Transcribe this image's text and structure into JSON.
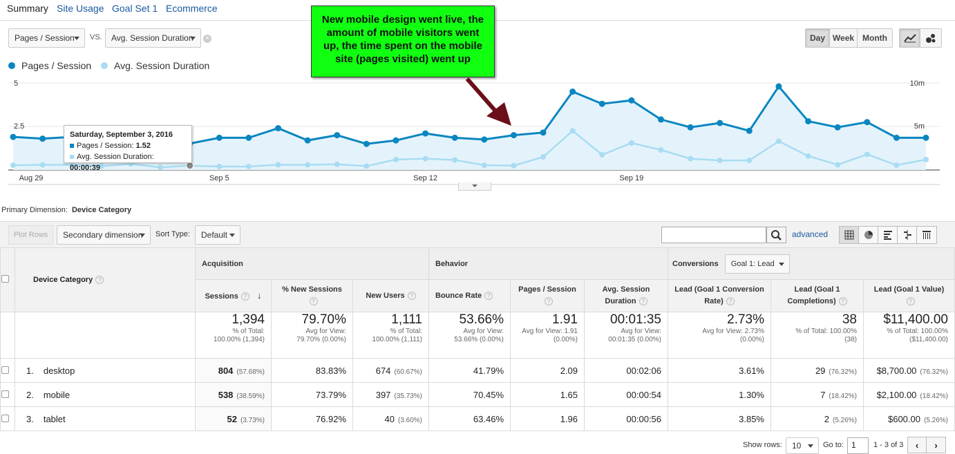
{
  "tabs": [
    "Summary",
    "Site Usage",
    "Goal Set 1",
    "Ecommerce"
  ],
  "controls": {
    "metric1": "Pages / Session",
    "vs_label": "VS.",
    "metric2": "Avg. Session Duration",
    "granularity": [
      "Day",
      "Week",
      "Month"
    ],
    "granularity_selected": "Day"
  },
  "colors": {
    "series1": "#0a86c0",
    "series2": "#a9dcf2",
    "annotation_bg": "#11ff11",
    "arrow": "#6b0f1a"
  },
  "annotation": {
    "line1": "New mobile design went live, the",
    "line2": "amount of mobile visitors went",
    "line3": "up, the time spent on the mobile",
    "line4": "site (pages visited) went up"
  },
  "chart_data": {
    "type": "line",
    "series": [
      {
        "name": "Pages / Session",
        "axis": "left",
        "values": [
          1.9,
          1.8,
          1.9,
          1.8,
          1.75,
          1.9,
          1.52,
          1.85,
          1.85,
          2.4,
          1.7,
          2.0,
          1.5,
          1.7,
          2.1,
          1.85,
          1.75,
          2.0,
          2.15,
          4.5,
          3.8,
          4.0,
          2.9,
          2.45,
          2.7,
          2.25,
          4.8,
          2.8,
          2.45,
          2.75,
          1.85,
          1.85
        ]
      },
      {
        "name": "Avg. Session Duration",
        "axis": "right",
        "values": [
          0.55,
          0.6,
          0.6,
          0.45,
          0.7,
          0.3,
          0.5,
          0.4,
          0.4,
          0.6,
          0.6,
          0.65,
          0.45,
          1.2,
          1.3,
          1.15,
          0.55,
          0.5,
          1.5,
          4.5,
          1.75,
          3.1,
          2.3,
          1.3,
          1.1,
          1.1,
          3.3,
          1.6,
          0.6,
          1.8,
          0.55,
          1.2
        ]
      }
    ],
    "y_left_ticks": [
      "5",
      "2.5"
    ],
    "y_right_ticks": [
      "10m",
      "5m"
    ],
    "ylim_left": [
      0,
      5
    ],
    "ylim_right": [
      0,
      10
    ],
    "x_ticks": [
      {
        "label": "Aug 29",
        "index": 0
      },
      {
        "label": "Sep 5",
        "index": 7
      },
      {
        "label": "Sep 12",
        "index": 14
      },
      {
        "label": "Sep 19",
        "index": 21
      }
    ]
  },
  "tooltip": {
    "date": "Saturday, September 3, 2016",
    "line1": "Pages / Session: ",
    "line1_val": "1.52",
    "line2": "Avg. Session Duration: ",
    "line2_val": "00:00:39"
  },
  "table_controls": {
    "primary_dimension_label": "Primary Dimension:",
    "primary_dimension": "Device Category",
    "plot_rows": "Plot Rows",
    "secondary_dimension": "Secondary dimension",
    "sort_type_label": "Sort Type:",
    "sort_type": "Default",
    "advanced": "advanced"
  },
  "table": {
    "dimension_header": "Device Category",
    "groups": {
      "acquisition": "Acquisition",
      "behavior": "Behavior",
      "conversions": "Conversions",
      "goal": "Goal 1: Lead"
    },
    "columns": [
      "Sessions",
      "% New Sessions",
      "New Users",
      "Bounce Rate",
      "Pages / Session",
      "Avg. Session Duration",
      "Lead (Goal 1 Conversion Rate)",
      "Lead (Goal 1 Completions)",
      "Lead (Goal 1 Value)"
    ],
    "totals": [
      {
        "value": "1,394",
        "sub1": "% of Total:",
        "sub2": "100.00% (1,394)"
      },
      {
        "value": "79.70%",
        "sub1": "Avg for View:",
        "sub2": "79.70% (0.00%)"
      },
      {
        "value": "1,111",
        "sub1": "% of Total:",
        "sub2": "100.00% (1,111)"
      },
      {
        "value": "53.66%",
        "sub1": "Avg for View:",
        "sub2": "53.66% (0.00%)"
      },
      {
        "value": "1.91",
        "sub1": "Avg for View: 1.91",
        "sub2": "(0.00%)"
      },
      {
        "value": "00:01:35",
        "sub1": "Avg for View:",
        "sub2": "00:01:35 (0.00%)"
      },
      {
        "value": "2.73%",
        "sub1": "Avg for View: 2.73%",
        "sub2": "(0.00%)"
      },
      {
        "value": "38",
        "sub1": "% of Total: 100.00%",
        "sub2": "(38)"
      },
      {
        "value": "$11,400.00",
        "sub1": "% of Total: 100.00%",
        "sub2": "($11,400.00)"
      }
    ],
    "rows": [
      {
        "num": "1.",
        "name": "desktop",
        "sessions": "804",
        "sessions_pct": "(57.68%)",
        "new_sessions": "83.83%",
        "new_users": "674",
        "new_users_pct": "(60.67%)",
        "bounce": "41.79%",
        "pages": "2.09",
        "duration": "00:02:06",
        "conv_rate": "3.61%",
        "completions": "29",
        "completions_pct": "(76.32%)",
        "value": "$8,700.00",
        "value_pct": "(76.32%)"
      },
      {
        "num": "2.",
        "name": "mobile",
        "sessions": "538",
        "sessions_pct": "(38.59%)",
        "new_sessions": "73.79%",
        "new_users": "397",
        "new_users_pct": "(35.73%)",
        "bounce": "70.45%",
        "pages": "1.65",
        "duration": "00:00:54",
        "conv_rate": "1.30%",
        "completions": "7",
        "completions_pct": "(18.42%)",
        "value": "$2,100.00",
        "value_pct": "(18.42%)"
      },
      {
        "num": "3.",
        "name": "tablet",
        "sessions": "52",
        "sessions_pct": "(3.73%)",
        "new_sessions": "76.92%",
        "new_users": "40",
        "new_users_pct": "(3.60%)",
        "bounce": "63.46%",
        "pages": "1.96",
        "duration": "00:00:56",
        "conv_rate": "3.85%",
        "completions": "2",
        "completions_pct": "(5.26%)",
        "value": "$600.00",
        "value_pct": "(5.26%)"
      }
    ]
  },
  "footer": {
    "show_rows_label": "Show rows:",
    "show_rows": "10",
    "goto_label": "Go to:",
    "goto_value": "1",
    "range": "1 - 3 of 3"
  }
}
